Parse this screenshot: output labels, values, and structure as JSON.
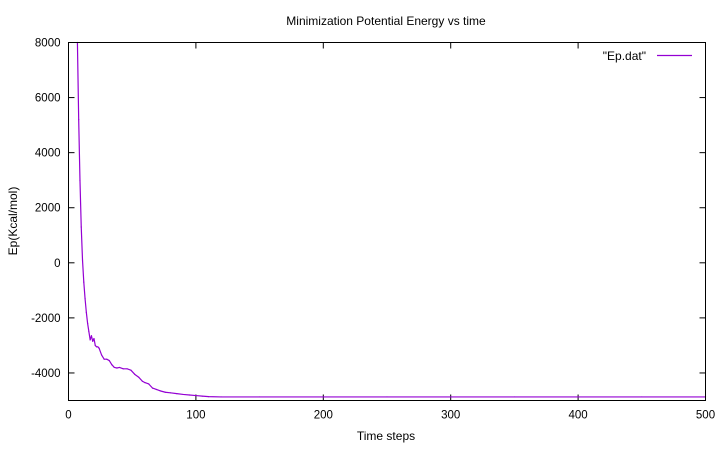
{
  "chart_data": {
    "type": "line",
    "title": "Minimization Potential Energy vs time",
    "xlabel": "Time steps",
    "ylabel": "Ep(Kcal/mol)",
    "xlim": [
      0,
      500
    ],
    "ylim": [
      -5000,
      8000
    ],
    "x_ticks": [
      0,
      100,
      200,
      300,
      400,
      500
    ],
    "y_ticks": [
      -4000,
      -2000,
      0,
      2000,
      4000,
      6000,
      8000
    ],
    "grid": false,
    "legend_position": "top-right",
    "series": [
      {
        "name": "\"Ep.dat\"",
        "color": "#9400d3",
        "x": [
          7,
          8,
          9,
          10,
          11,
          12,
          13,
          14,
          15,
          16,
          17,
          18,
          19,
          20,
          21,
          22,
          23,
          24,
          26,
          28,
          30,
          32,
          34,
          36,
          38,
          40,
          43,
          46,
          49,
          52,
          55,
          58,
          60,
          63,
          66,
          69,
          72,
          76,
          80,
          85,
          90,
          95,
          100,
          105,
          110,
          120,
          150,
          200,
          250,
          300,
          350,
          400,
          450,
          500
        ],
        "values": [
          8000,
          5200,
          3000,
          1300,
          100,
          -700,
          -1300,
          -1800,
          -2200,
          -2500,
          -2800,
          -2650,
          -2850,
          -2750,
          -3000,
          -3050,
          -3050,
          -3100,
          -3350,
          -3500,
          -3500,
          -3550,
          -3700,
          -3800,
          -3820,
          -3800,
          -3850,
          -3850,
          -3900,
          -4050,
          -4150,
          -4300,
          -4350,
          -4400,
          -4550,
          -4600,
          -4650,
          -4700,
          -4720,
          -4750,
          -4780,
          -4800,
          -4820,
          -4840,
          -4860,
          -4870,
          -4870,
          -4870,
          -4870,
          -4870,
          -4870,
          -4870,
          -4870,
          -4870
        ]
      }
    ]
  }
}
